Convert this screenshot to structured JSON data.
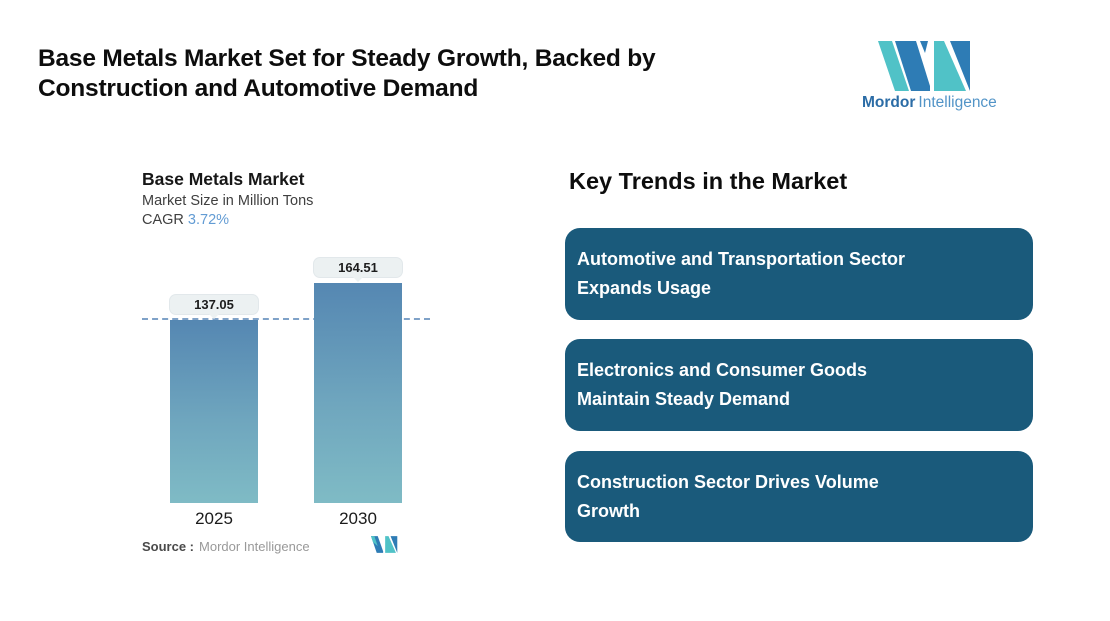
{
  "header": {
    "title": "Base Metals Market Set for Steady Growth, Backed by\nConstruction and Automotive Demand",
    "logo": {
      "word1": "Mordor",
      "word2": "Intelligence"
    }
  },
  "chart": {
    "title": "Base Metals Market",
    "subtitle": "Market Size in Million Tons",
    "cagr_label": "CAGR",
    "cagr_value": "3.72%",
    "source_label": "Source :",
    "source_value": "Mordor Intelligence"
  },
  "chart_data": {
    "type": "bar",
    "title": "Base Metals Market",
    "subtitle": "Market Size in Million Tons",
    "unit": "Million Tons",
    "cagr": "3.72%",
    "categories": [
      "2025",
      "2030"
    ],
    "values": [
      137.05,
      164.51
    ],
    "data_labels": [
      "137.05",
      "164.51"
    ],
    "baseline_value": 137.05,
    "baseline_style": "horizontal dashed line at 2025 value",
    "grid": false,
    "legend": false,
    "bar_gradient_top": "#5587B2",
    "bar_gradient_bottom": "#7FBBC5"
  },
  "trends": {
    "heading": "Key Trends in the Market",
    "cards": [
      {
        "label": "Automotive and Transportation Sector\nExpands Usage"
      },
      {
        "label": "Electronics and Consumer Goods\nMaintain Steady Demand"
      },
      {
        "label": "Construction Sector Drives Volume\nGrowth"
      }
    ]
  },
  "colors": {
    "card_background": "#1A5A7B",
    "card_text": "#FFFFFF",
    "accent_teal": "#50C2C7",
    "accent_blue": "#2E7CB5",
    "cagr_value": "#639CD4",
    "dashed_line": "#7FA2C8",
    "pill_background": "#ECF1F2",
    "logo_word1": "#2B6CA6",
    "logo_word2": "#5294C7"
  }
}
